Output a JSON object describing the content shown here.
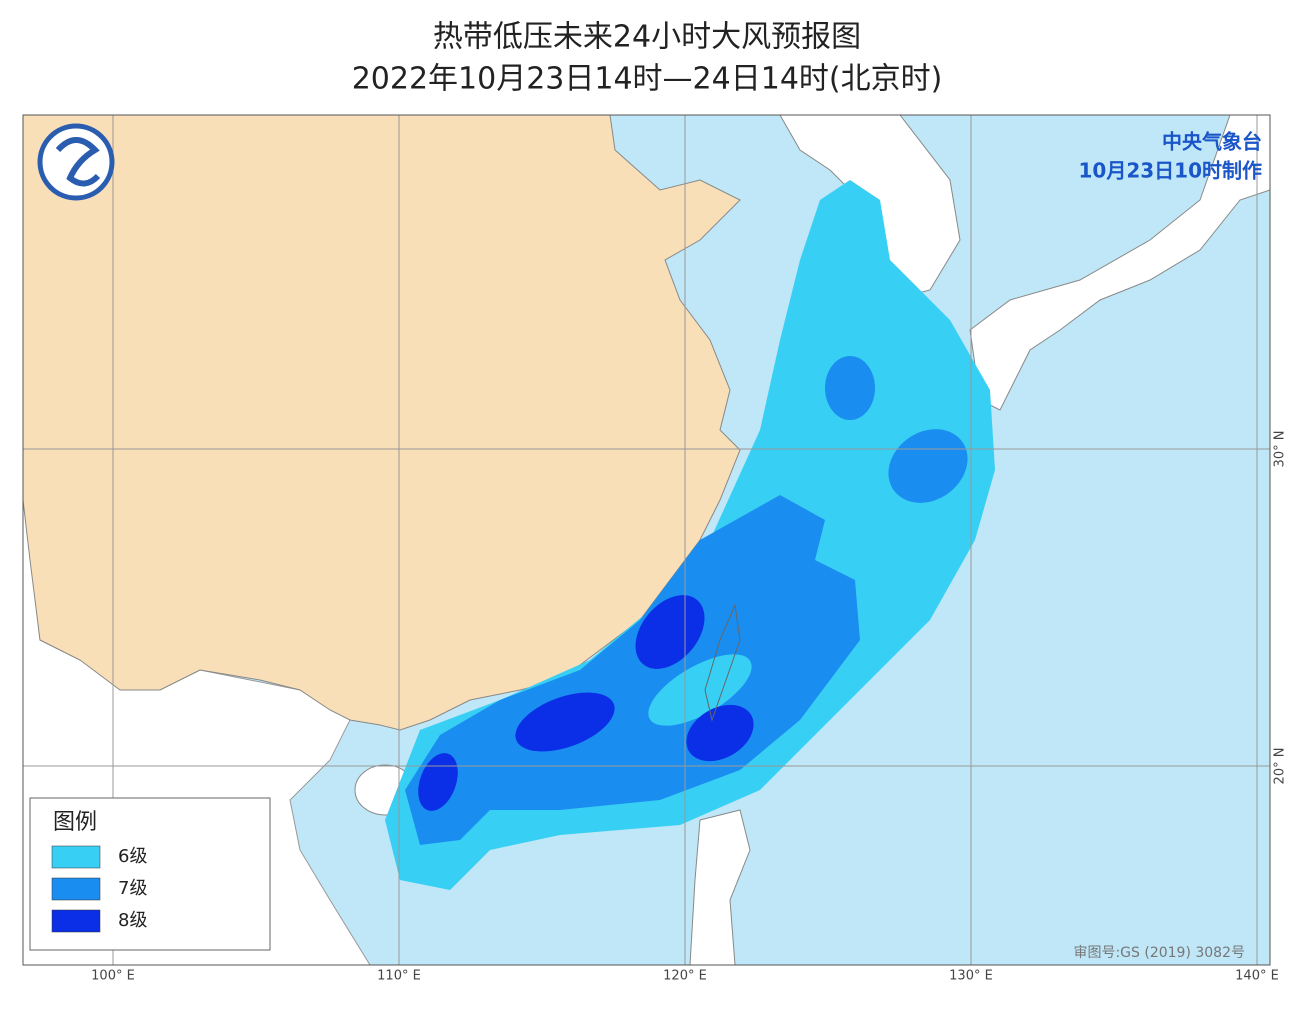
{
  "header": {
    "title": "热带低压未来24小时大风预报图",
    "subtitle": "2022年10月23日14时—24日14时(北京时)"
  },
  "issuer": {
    "agency": "中央气象台",
    "made": "10月23日10时制作"
  },
  "legend": {
    "title": "图例",
    "items": [
      {
        "label": "6级",
        "color": "#38cff4"
      },
      {
        "label": "7级",
        "color": "#1a8ef0"
      },
      {
        "label": "8级",
        "color": "#0b2fe6"
      }
    ]
  },
  "grid": {
    "lon": [
      {
        "value": 100,
        "label": "100° E"
      },
      {
        "value": 110,
        "label": "110° E"
      },
      {
        "value": 120,
        "label": "120° E"
      },
      {
        "value": 130,
        "label": "130° E"
      },
      {
        "value": 140,
        "label": "140° E"
      }
    ],
    "lat": [
      {
        "value": 30,
        "label": "30° N"
      },
      {
        "value": 20,
        "label": "20° N"
      }
    ]
  },
  "approval": "审图号:GS (2019) 3082号"
}
